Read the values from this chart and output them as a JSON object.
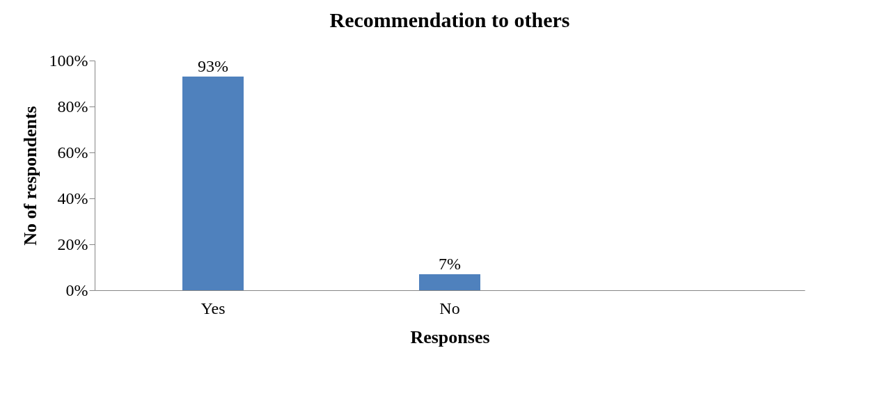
{
  "chart_data": {
    "type": "bar",
    "title": "Recommendation  to others",
    "xlabel": "Responses",
    "ylabel": "No of respondents",
    "categories": [
      "Yes",
      "No",
      null
    ],
    "values": [
      93,
      7,
      null
    ],
    "value_labels": [
      "93%",
      "7%",
      null
    ],
    "color": "#4f81bd",
    "ylim": [
      0,
      100
    ],
    "yticks": [
      {
        "value": 0,
        "label": "0%"
      },
      {
        "value": 20,
        "label": "20%"
      },
      {
        "value": 40,
        "label": "40%"
      },
      {
        "value": 60,
        "label": "60%"
      },
      {
        "value": 80,
        "label": "80%"
      },
      {
        "value": 100,
        "label": "100%"
      }
    ],
    "grid": false
  }
}
